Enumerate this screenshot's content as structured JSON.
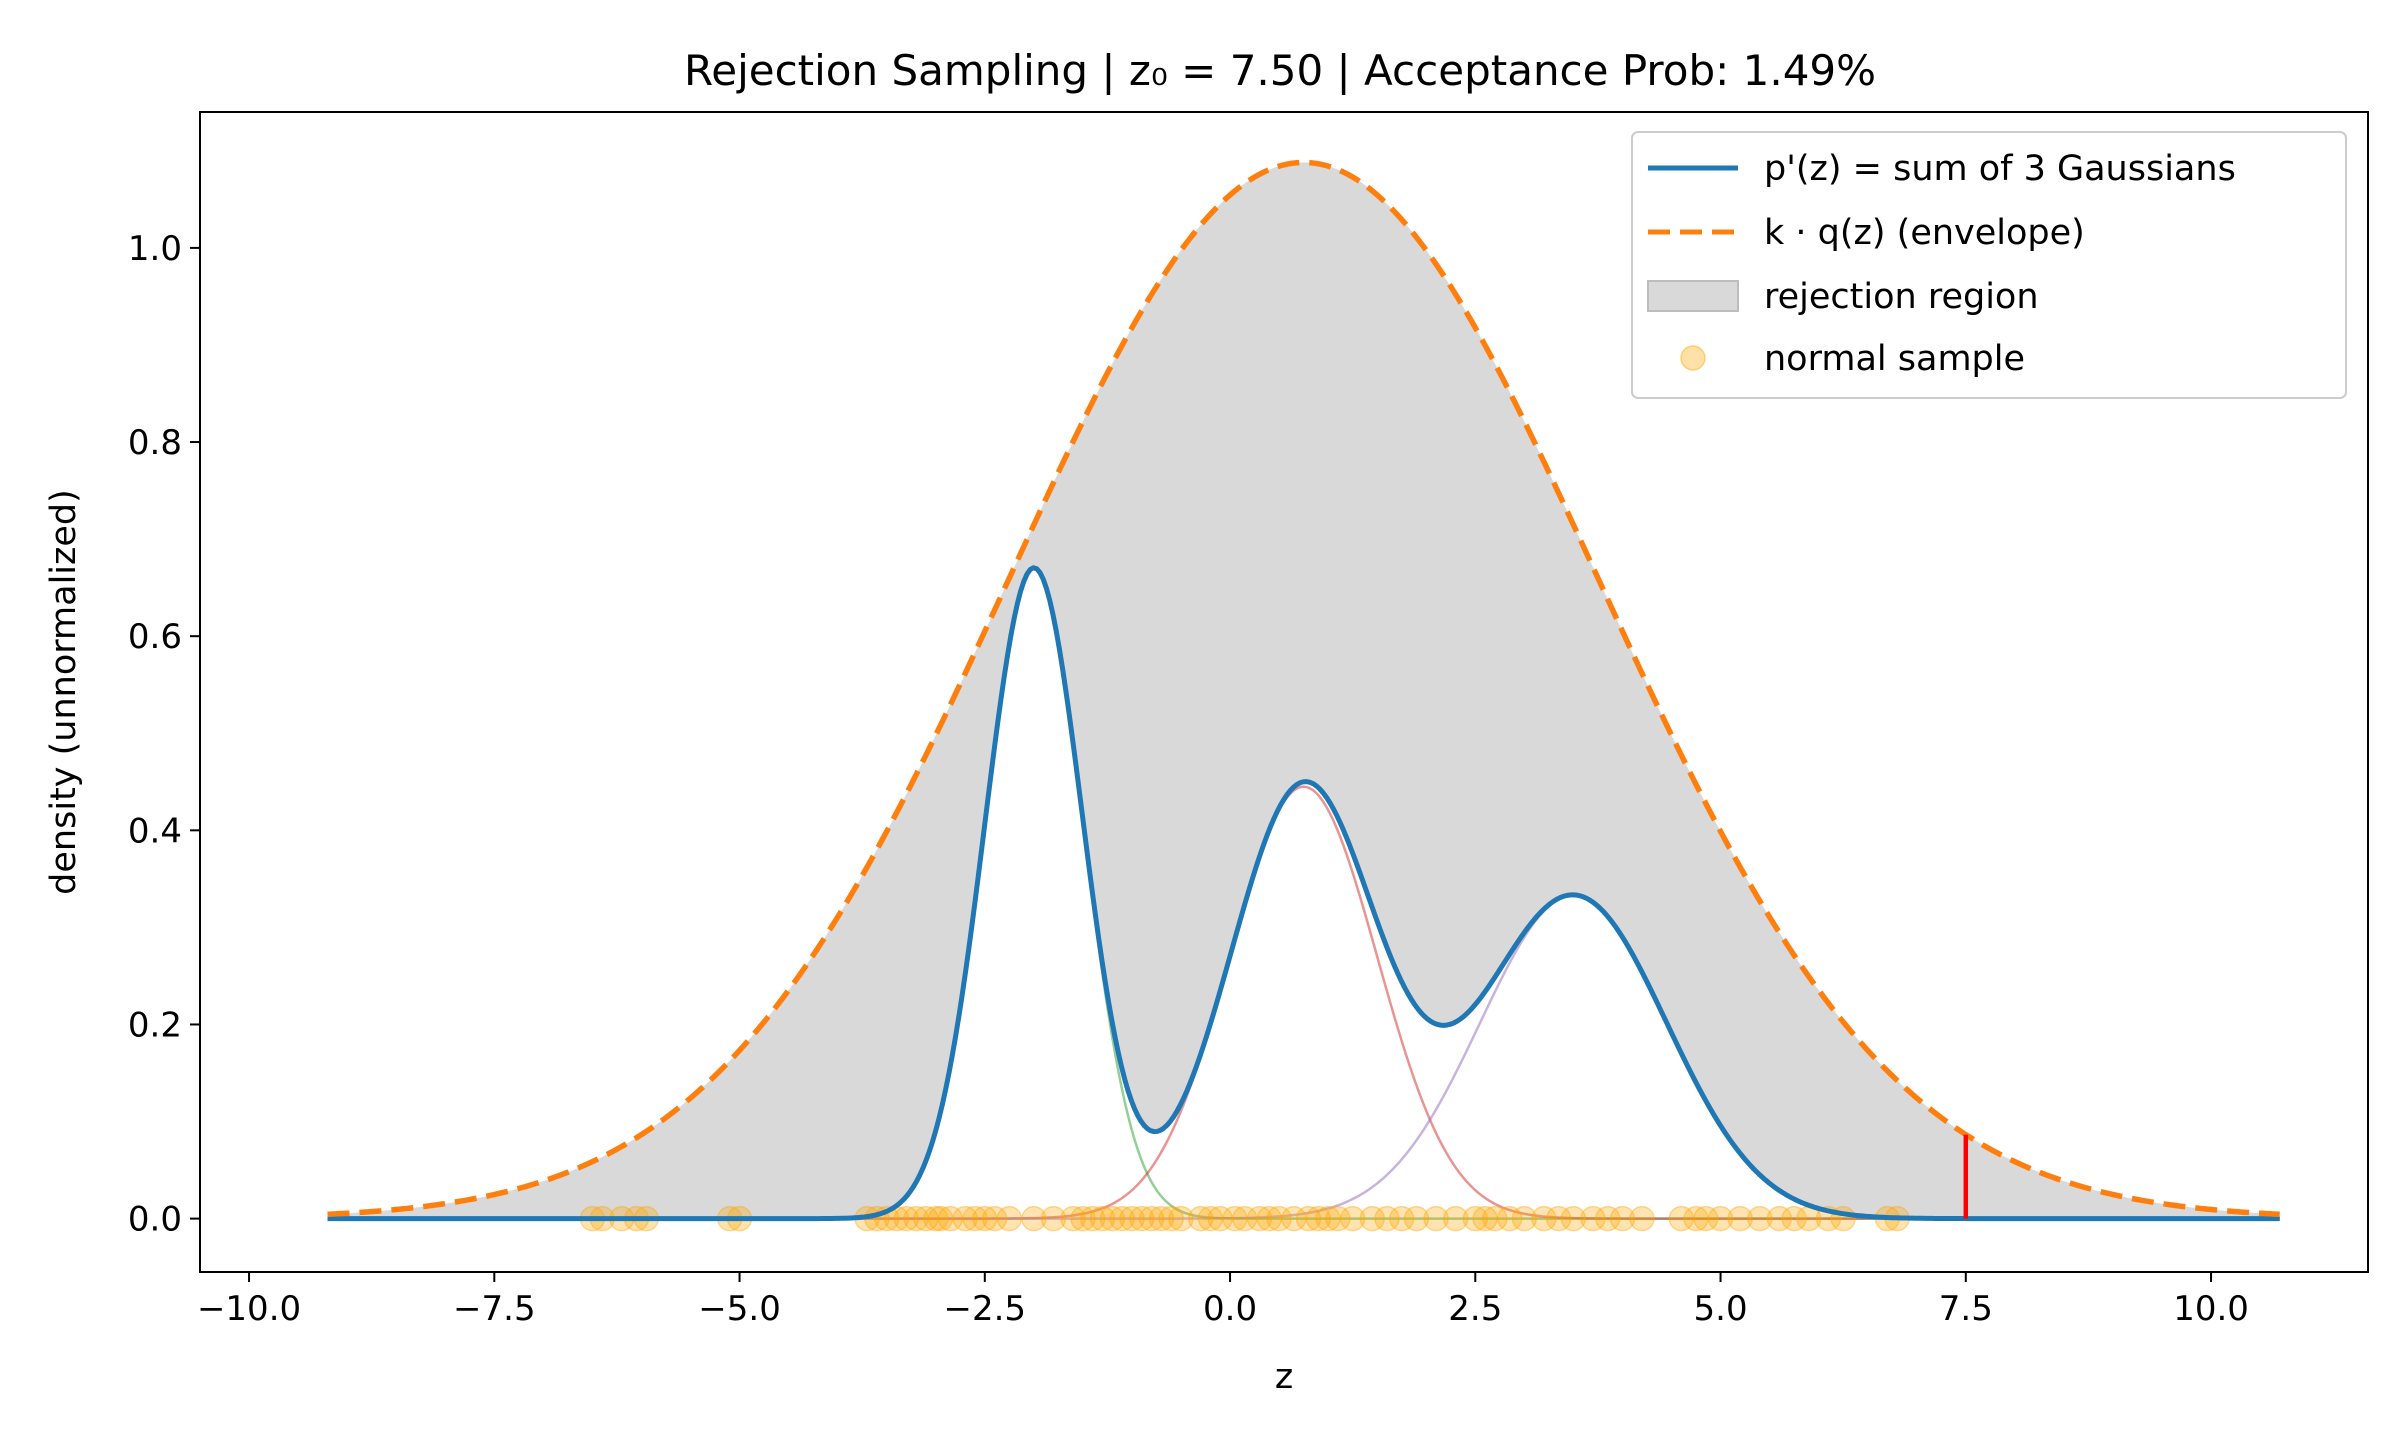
{
  "chart_data": {
    "type": "line",
    "title": "Rejection Sampling | z₀ = 7.50 | Acceptance Prob: 1.49%",
    "xlabel": "z",
    "ylabel": "density (unnormalized)",
    "xlim": [
      -10.5,
      11.6
    ],
    "ylim": [
      -0.055,
      1.14
    ],
    "xticks": [
      -10.0,
      -7.5,
      -5.0,
      -2.5,
      0.0,
      2.5,
      5.0,
      7.5,
      10.0
    ],
    "xtick_labels": [
      "−10.0",
      "−7.5",
      "−5.0",
      "−2.5",
      "0.0",
      "2.5",
      "5.0",
      "7.5",
      "10.0"
    ],
    "yticks": [
      0.0,
      0.2,
      0.4,
      0.6,
      0.8,
      1.0
    ],
    "ytick_labels": [
      "0.0",
      "0.2",
      "0.4",
      "0.6",
      "0.8",
      "1.0"
    ],
    "x_range": [
      -9.2,
      10.7
    ],
    "grid": false,
    "legend_position": "top-right",
    "components": [
      {
        "mean": -2.0,
        "sd": 0.5,
        "amp": 0.67,
        "color": "#2ca02c"
      },
      {
        "mean": 0.75,
        "sd": 0.75,
        "amp": 0.445,
        "color": "#d62728"
      },
      {
        "mean": 3.5,
        "sd": 0.95,
        "amp": 0.333,
        "color": "#9467bd"
      }
    ],
    "envelope": {
      "mean": 0.75,
      "sd": 3.0,
      "peak": 1.088
    },
    "series": [
      {
        "name": "p'(z) = sum of 3 Gaussians",
        "color": "#1f77b4",
        "style": "solid"
      },
      {
        "name": "k · q(z) (envelope)",
        "color": "#ff7f0e",
        "style": "dashed"
      },
      {
        "name": "rejection region",
        "color": "#d9d9d9",
        "style": "fill"
      },
      {
        "name": "normal sample",
        "color": "#ffa500",
        "style": "scatter"
      }
    ],
    "marker": {
      "z0": 7.5,
      "color": "#ff0000"
    },
    "samples_z": [
      -6.5,
      -6.4,
      -6.2,
      -6.05,
      -5.95,
      -5.1,
      -5.0,
      -3.7,
      -3.6,
      -3.5,
      -3.4,
      -3.3,
      -3.2,
      -3.1,
      -3.0,
      -2.95,
      -2.85,
      -2.7,
      -2.6,
      -2.5,
      -2.4,
      -2.25,
      -2.0,
      -1.8,
      -1.6,
      -1.5,
      -1.4,
      -1.3,
      -1.2,
      -1.1,
      -1.0,
      -0.9,
      -0.8,
      -0.7,
      -0.6,
      -0.5,
      -0.3,
      -0.2,
      -0.1,
      0.05,
      0.15,
      0.3,
      0.4,
      0.5,
      0.65,
      0.8,
      0.9,
      1.0,
      1.1,
      1.25,
      1.45,
      1.6,
      1.75,
      1.9,
      2.1,
      2.3,
      2.5,
      2.6,
      2.7,
      2.85,
      3.0,
      3.2,
      3.35,
      3.5,
      3.7,
      3.85,
      4.0,
      4.2,
      4.6,
      4.75,
      4.85,
      5.0,
      5.2,
      5.4,
      5.6,
      5.75,
      5.9,
      6.1,
      6.25,
      6.7,
      6.8
    ]
  }
}
